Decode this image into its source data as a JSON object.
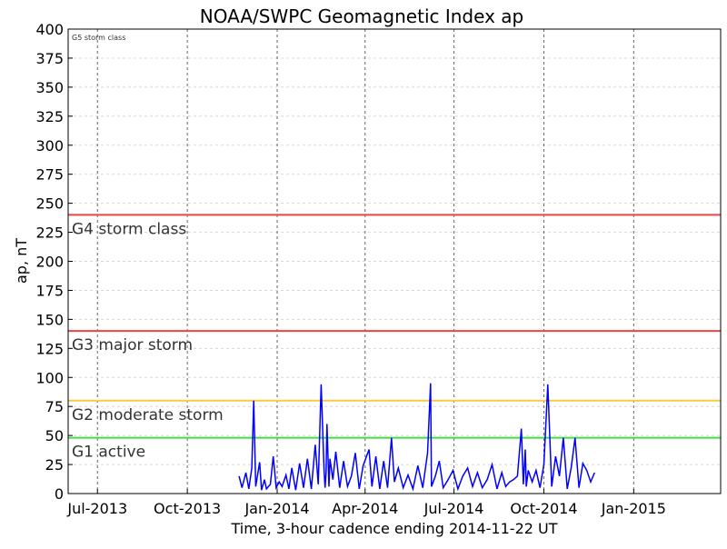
{
  "chart_data": {
    "type": "line",
    "title": "NOAA/SWPC Geomagnetic Index ap",
    "xlabel": "Time, 3-hour cadence ending 2014-11-22 UT",
    "ylabel": "ap, nT",
    "ylim": [
      0,
      400
    ],
    "xlim": [
      "2013-06-01",
      "2015-03-31"
    ],
    "grid": true,
    "x_ticks": [
      {
        "date": "2013-07-01",
        "label": "Jul-2013"
      },
      {
        "date": "2013-10-01",
        "label": "Oct-2013"
      },
      {
        "date": "2014-01-01",
        "label": "Jan-2014"
      },
      {
        "date": "2014-04-01",
        "label": "Apr-2014"
      },
      {
        "date": "2014-07-01",
        "label": "Jul-2014"
      },
      {
        "date": "2014-10-01",
        "label": "Oct-2014"
      },
      {
        "date": "2015-01-01",
        "label": "Jan-2015"
      }
    ],
    "y_ticks": [
      0,
      25,
      50,
      75,
      100,
      125,
      150,
      175,
      200,
      225,
      250,
      275,
      300,
      325,
      350,
      375,
      400
    ],
    "thresholds": [
      {
        "value": 48,
        "label": "G1 active",
        "color": "#44dd44"
      },
      {
        "value": 80,
        "label": "G2 moderate storm",
        "color": "#f5cc44"
      },
      {
        "value": 140,
        "label": "G3 major storm",
        "color": "#ee4444"
      },
      {
        "value": 240,
        "label": "G4 storm class",
        "color": "#ee4444"
      }
    ],
    "top_note": "G5 storm class",
    "series_color": "#0000ff",
    "series": [
      {
        "x": [
          "2013-11-23",
          "2013-11-26",
          "2013-11-30",
          "2013-12-03",
          "2013-12-06",
          "2013-12-08",
          "2013-12-10",
          "2013-12-14",
          "2013-12-16",
          "2013-12-19",
          "2013-12-21",
          "2013-12-25",
          "2013-12-28",
          "2013-12-31",
          "2014-01-03",
          "2014-01-06",
          "2014-01-10",
          "2014-01-13",
          "2014-01-16",
          "2014-01-20",
          "2014-01-24",
          "2014-01-28",
          "2014-02-01",
          "2014-02-05",
          "2014-02-09",
          "2014-02-12",
          "2014-02-15",
          "2014-02-18",
          "2014-02-19",
          "2014-02-20",
          "2014-02-21",
          "2014-02-23",
          "2014-02-24",
          "2014-02-27",
          "2014-03-02",
          "2014-03-06",
          "2014-03-10",
          "2014-03-14",
          "2014-03-18",
          "2014-03-22",
          "2014-03-26",
          "2014-03-30",
          "2014-04-05",
          "2014-04-08",
          "2014-04-12",
          "2014-04-16",
          "2014-04-20",
          "2014-04-24",
          "2014-04-28",
          "2014-05-01",
          "2014-05-05",
          "2014-05-10",
          "2014-05-15",
          "2014-05-20",
          "2014-05-25",
          "2014-05-30",
          "2014-06-04",
          "2014-06-07",
          "2014-06-08",
          "2014-06-12",
          "2014-06-16",
          "2014-06-20",
          "2014-06-25",
          "2014-06-30",
          "2014-07-05",
          "2014-07-10",
          "2014-07-15",
          "2014-07-20",
          "2014-07-25",
          "2014-07-30",
          "2014-08-04",
          "2014-08-09",
          "2014-08-14",
          "2014-08-19",
          "2014-08-23",
          "2014-08-27",
          "2014-08-31",
          "2014-09-04",
          "2014-09-08",
          "2014-09-10",
          "2014-09-12",
          "2014-09-13",
          "2014-09-15",
          "2014-09-19",
          "2014-09-23",
          "2014-09-27",
          "2014-10-01",
          "2014-10-05",
          "2014-10-09",
          "2014-10-13",
          "2014-10-17",
          "2014-10-21",
          "2014-10-25",
          "2014-10-29",
          "2014-11-02",
          "2014-11-06",
          "2014-11-10",
          "2014-11-14",
          "2014-11-18",
          "2014-11-22"
        ],
        "y": [
          15,
          5,
          18,
          4,
          22,
          80,
          6,
          27,
          3,
          12,
          4,
          8,
          32,
          5,
          10,
          6,
          16,
          4,
          22,
          3,
          26,
          5,
          30,
          4,
          42,
          8,
          94,
          20,
          5,
          18,
          60,
          6,
          30,
          12,
          36,
          5,
          28,
          6,
          15,
          35,
          4,
          24,
          38,
          6,
          32,
          4,
          28,
          5,
          48,
          10,
          22,
          5,
          16,
          4,
          24,
          5,
          35,
          95,
          6,
          15,
          28,
          5,
          12,
          20,
          4,
          15,
          22,
          6,
          18,
          5,
          12,
          25,
          4,
          18,
          6,
          10,
          12,
          15,
          56,
          8,
          38,
          6,
          20,
          10,
          20,
          5,
          25,
          94,
          6,
          32,
          15,
          48,
          4,
          22,
          48,
          5,
          26,
          20,
          10,
          18
        ]
      }
    ]
  }
}
